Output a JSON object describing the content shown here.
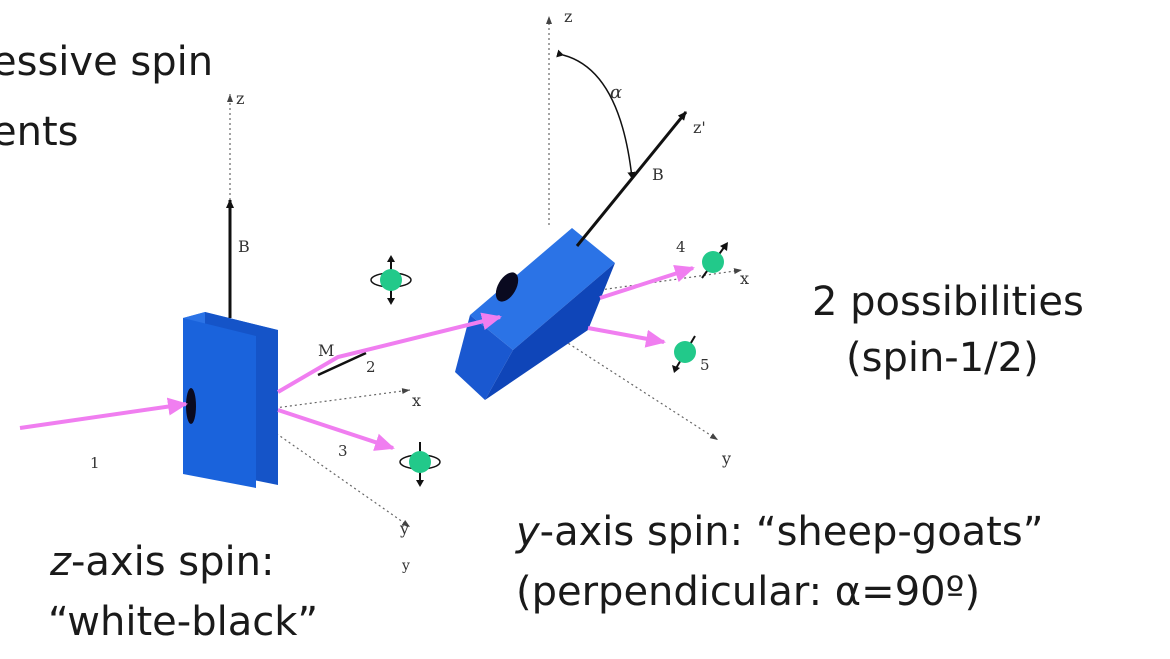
{
  "title": {
    "line1": "essive spin",
    "line2": "ents"
  },
  "diagram_labels": {
    "z1": "z",
    "z2": "z",
    "z_prime": "z'",
    "alpha": "α",
    "B1": "B",
    "B2": "B",
    "M": "M",
    "x1": "x",
    "x2": "x",
    "y1": "y",
    "y2": "y",
    "y3": "y",
    "beam1": "1",
    "beam2": "2",
    "beam3": "3",
    "beam4": "4",
    "beam5": "5"
  },
  "captions": {
    "possibilities_line1": "2 possibilities",
    "possibilities_line2": "(spin-1/2)",
    "z_axis_prefix": "z",
    "z_axis_line1": "-axis spin:",
    "z_axis_line2": "“white-black”",
    "y_axis_prefix": "y",
    "y_axis_line1": "-axis spin: “sheep-goats”",
    "y_axis_line2": "(perpendicular: α=90º)"
  },
  "colors": {
    "magnet": "#1a66e0",
    "beam": "#f07ef0",
    "particle": "#22c98a",
    "text": "#1a1a1a"
  }
}
